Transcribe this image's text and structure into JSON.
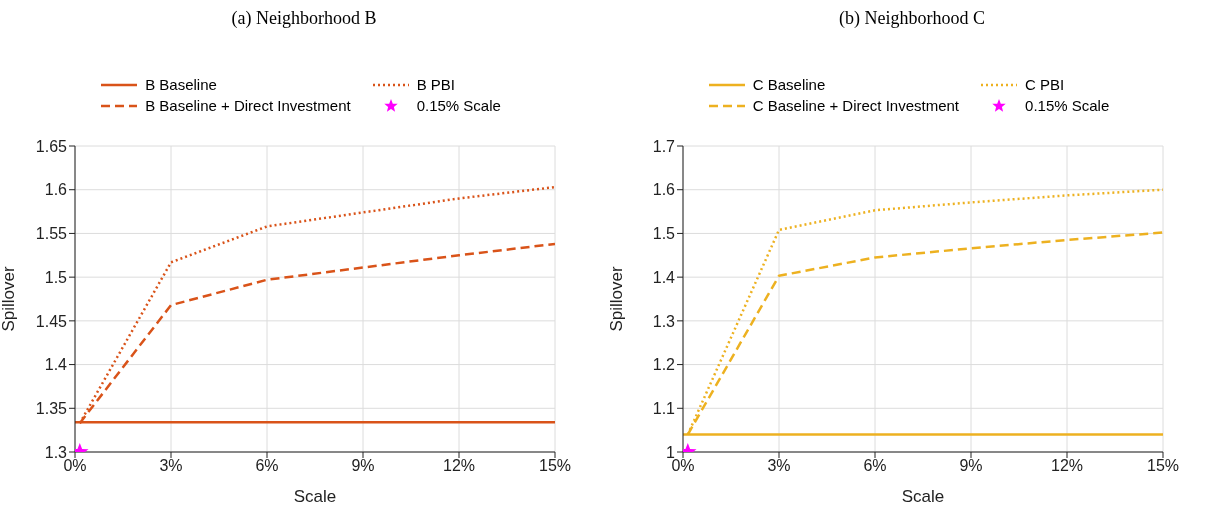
{
  "chart_data": [
    {
      "type": "line",
      "title": "(a) Neighborhood B",
      "xlabel": "Scale",
      "ylabel": "Spillover",
      "grid": true,
      "legend": "top",
      "xlim": [
        0,
        15
      ],
      "xticks": [
        {
          "value": 0,
          "label": "0%"
        },
        {
          "value": 3,
          "label": "3%"
        },
        {
          "value": 6,
          "label": "6%"
        },
        {
          "value": 9,
          "label": "9%"
        },
        {
          "value": 12,
          "label": "12%"
        },
        {
          "value": 15,
          "label": "15%"
        }
      ],
      "ylim": [
        1.3,
        1.65
      ],
      "yticks": [
        1.3,
        1.35,
        1.4,
        1.45,
        1.5,
        1.55,
        1.6,
        1.65
      ],
      "series": [
        {
          "name": "B Baseline",
          "line_style": "solid",
          "marker": "none",
          "color": "#d95319",
          "x": [
            0,
            15
          ],
          "values": [
            1.334,
            1.334
          ]
        },
        {
          "name": "B PBI",
          "line_style": "dotted",
          "marker": "none",
          "color": "#d95319",
          "x": [
            0.15,
            3,
            6,
            9,
            12,
            15
          ],
          "values": [
            1.333,
            1.517,
            1.558,
            1.574,
            1.59,
            1.603
          ]
        },
        {
          "name": "B Baseline + Direct Investment",
          "line_style": "dashed",
          "marker": "none",
          "color": "#d95319",
          "x": [
            0.15,
            3,
            6,
            9,
            12,
            15
          ],
          "values": [
            1.333,
            1.468,
            1.497,
            1.511,
            1.525,
            1.538
          ]
        },
        {
          "name": "0.15% Scale",
          "type": "scatter",
          "marker": "star",
          "color": "#ff00ff",
          "x": [
            0.15
          ],
          "values": [
            1.3
          ]
        }
      ]
    },
    {
      "type": "line",
      "title": "(b) Neighborhood C",
      "xlabel": "Scale",
      "ylabel": "Spillover",
      "grid": true,
      "legend": "top",
      "xlim": [
        0,
        15
      ],
      "xticks": [
        {
          "value": 0,
          "label": "0%"
        },
        {
          "value": 3,
          "label": "3%"
        },
        {
          "value": 6,
          "label": "6%"
        },
        {
          "value": 9,
          "label": "9%"
        },
        {
          "value": 12,
          "label": "12%"
        },
        {
          "value": 15,
          "label": "15%"
        }
      ],
      "ylim": [
        1,
        1.7
      ],
      "yticks": [
        1,
        1.1,
        1.2,
        1.3,
        1.4,
        1.5,
        1.6,
        1.7
      ],
      "series": [
        {
          "name": "C Baseline",
          "line_style": "solid",
          "marker": "none",
          "color": "#edb120",
          "x": [
            0,
            15
          ],
          "values": [
            1.04,
            1.04
          ]
        },
        {
          "name": "C PBI",
          "line_style": "dotted",
          "marker": "none",
          "color": "#edb120",
          "x": [
            0.15,
            3,
            6,
            9,
            12,
            15
          ],
          "values": [
            1.04,
            1.508,
            1.553,
            1.571,
            1.587,
            1.6
          ]
        },
        {
          "name": "C Baseline + Direct Investment",
          "line_style": "dashed",
          "marker": "none",
          "color": "#edb120",
          "x": [
            0.15,
            3,
            6,
            9,
            12,
            15
          ],
          "values": [
            1.04,
            1.403,
            1.445,
            1.466,
            1.485,
            1.502
          ]
        },
        {
          "name": "0.15% Scale",
          "type": "scatter",
          "marker": "star",
          "color": "#ff00ff",
          "x": [
            0.15
          ],
          "values": [
            1
          ]
        }
      ]
    }
  ]
}
